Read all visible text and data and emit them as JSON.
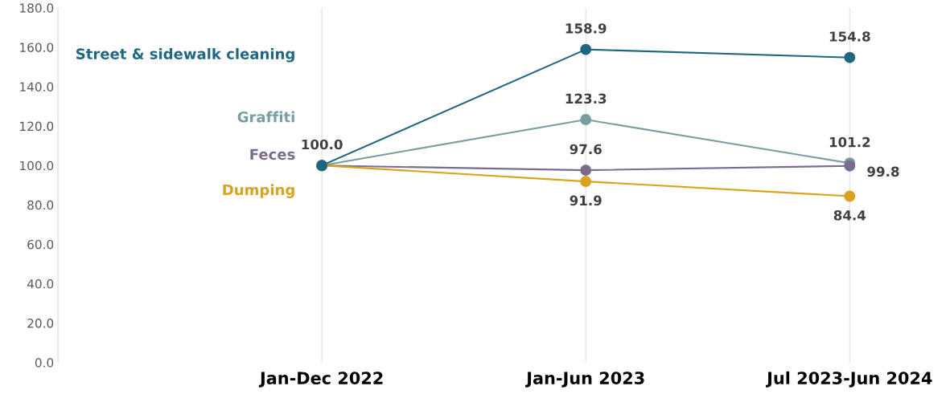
{
  "chart_data": {
    "type": "line",
    "categories": [
      "Jan-Dec 2022",
      "Jan-Jun 2023",
      "Jul 2023-Jun 2024"
    ],
    "series": [
      {
        "name": "Street & sidewalk cleaning",
        "color": "#1f6680",
        "values": [
          100.0,
          158.9,
          154.8
        ],
        "value_labels": [
          "100.0",
          "158.9",
          "154.8"
        ]
      },
      {
        "name": "Graffiti",
        "color": "#7a9ea0",
        "values": [
          100.0,
          123.3,
          101.2
        ],
        "value_labels": [
          null,
          "123.3",
          "101.2"
        ]
      },
      {
        "name": "Feces",
        "color": "#7b6c8f",
        "values": [
          100.0,
          97.6,
          99.8
        ],
        "value_labels": [
          null,
          "97.6",
          "99.8"
        ]
      },
      {
        "name": "Dumping",
        "color": "#d9a21f",
        "values": [
          100.0,
          91.9,
          84.4
        ],
        "value_labels": [
          null,
          "91.9",
          "84.4"
        ]
      }
    ],
    "ylim": [
      0,
      180
    ],
    "yticks": [
      {
        "value": 0,
        "label": "0.0"
      },
      {
        "value": 20,
        "label": "20.0"
      },
      {
        "value": 40,
        "label": "40.0"
      },
      {
        "value": 60,
        "label": "60.0"
      },
      {
        "value": 80,
        "label": "80.0"
      },
      {
        "value": 100,
        "label": "100.0"
      },
      {
        "value": 120,
        "label": "120.0"
      },
      {
        "value": 140,
        "label": "140.0"
      },
      {
        "value": 160,
        "label": "160.0"
      },
      {
        "value": 180,
        "label": "180.0"
      }
    ],
    "grid": "x",
    "legend": false,
    "marker": "circle",
    "line_style": "solid"
  }
}
